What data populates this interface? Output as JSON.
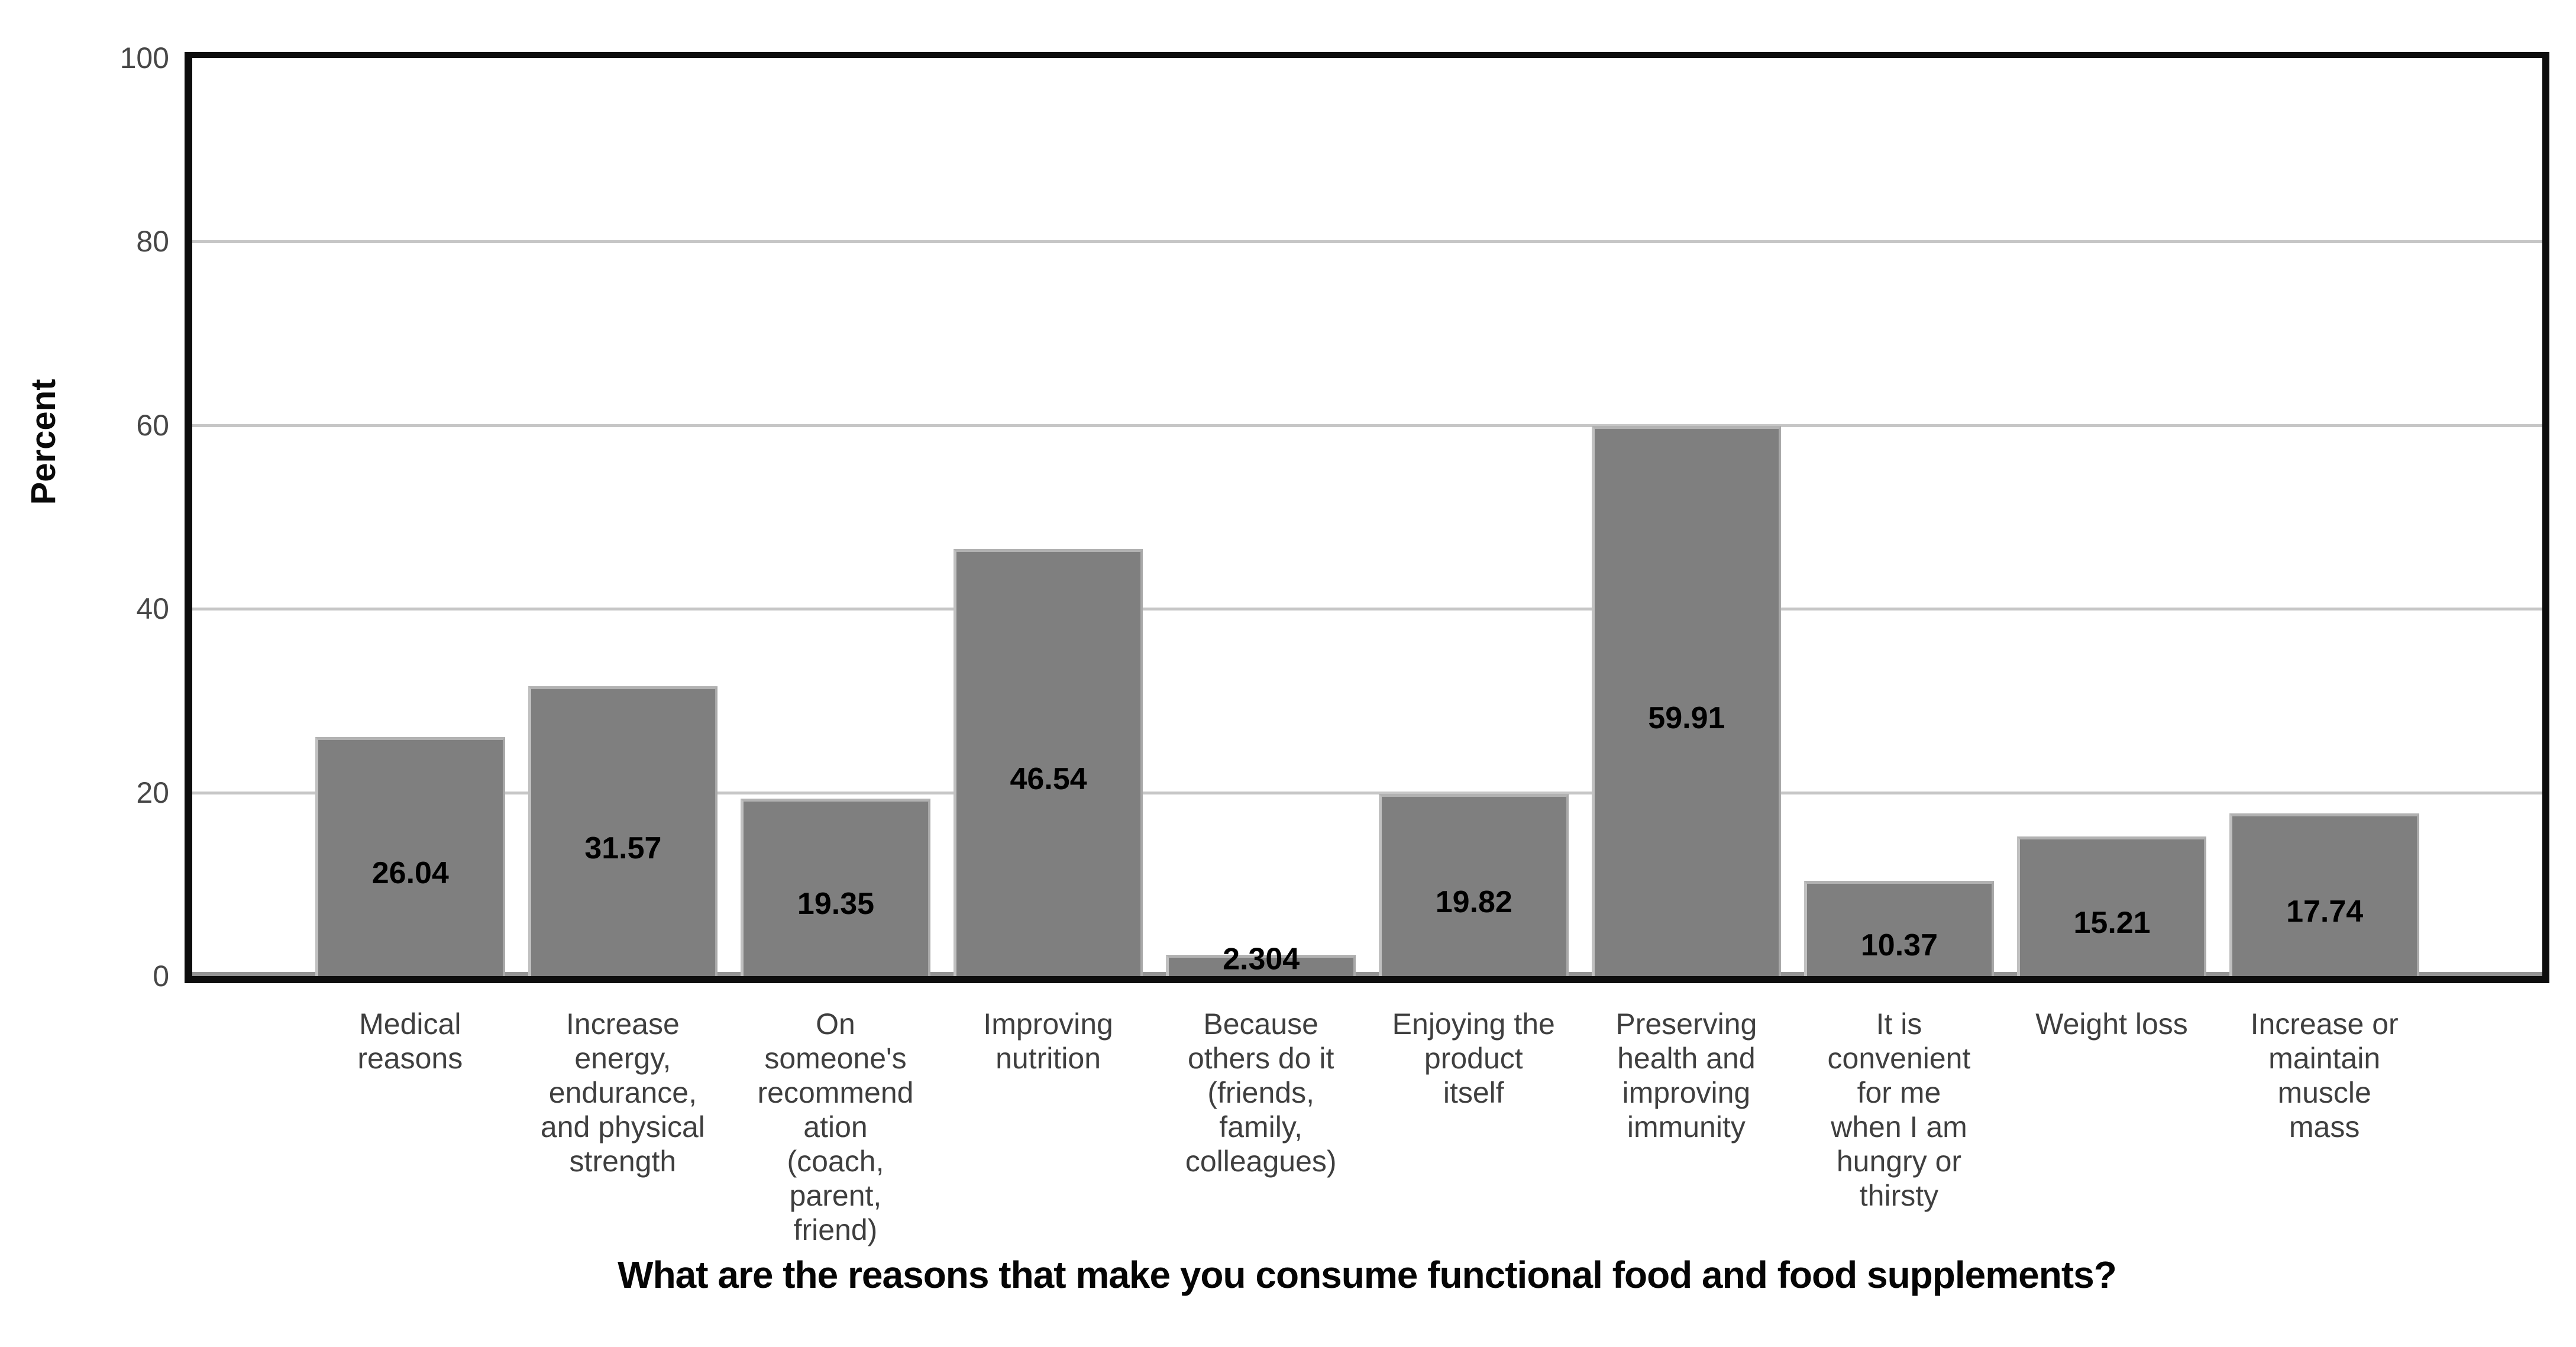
{
  "chart_data": {
    "type": "bar",
    "title": "",
    "xlabel": "What are the reasons that make you consume functional food and food supplements?",
    "ylabel": "Percent",
    "ylim": [
      0,
      100
    ],
    "yticks": [
      0,
      20,
      40,
      60,
      80,
      100
    ],
    "gridlines": [
      20,
      40,
      60,
      80
    ],
    "legend_position": "none",
    "bar_color": "#7f7f7f",
    "categories": [
      "Medical reasons",
      "Increase energy, endurance, and physical strength",
      "On someone's recommendation (coach, parent, friend)",
      "Improving nutrition",
      "Because others do it (friends, family, colleagues)",
      "Enjoying the product itself",
      "Preserving health and improving immunity",
      "It is convenient for me when I am hungry or thirsty",
      "Weight loss",
      "Increase or maintain muscle mass"
    ],
    "category_label_lines": [
      "Medical\nreasons",
      "Increase\nenergy,\nendurance,\nand physical\nstrength",
      "On\nsomeone's\nrecommend\nation\n(coach,\nparent,\nfriend)",
      "Improving\nnutrition",
      "Because\nothers do it\n(friends,\nfamily,\ncolleagues)",
      "Enjoying the\nproduct\nitself",
      "Preserving\nhealth and\nimproving\nimmunity",
      "It is\nconvenient\nfor me\nwhen I am\nhungry or\nthirsty",
      "Weight loss",
      "Increase or\nmaintain\nmuscle\nmass"
    ],
    "values": [
      26.04,
      31.57,
      19.35,
      46.54,
      2.304,
      19.82,
      59.91,
      10.37,
      15.21,
      17.74
    ],
    "value_labels": [
      "26.04",
      "31.57",
      "19.35",
      "46.54",
      "2.304",
      "19.82",
      "59.91",
      "10.37",
      "15.21",
      "17.74"
    ]
  },
  "colors": {
    "bar": "#7f7f7f",
    "bar_highlight": "#b2b2b2",
    "gridline": "#c6c6c6",
    "axis": "#0d0d0d",
    "axis_bevel": "#949494",
    "tick_label": "#474747",
    "category_label": "#3f3f3f",
    "value_label": "#000000",
    "title_text": "#050505",
    "background": "#ffffff"
  }
}
